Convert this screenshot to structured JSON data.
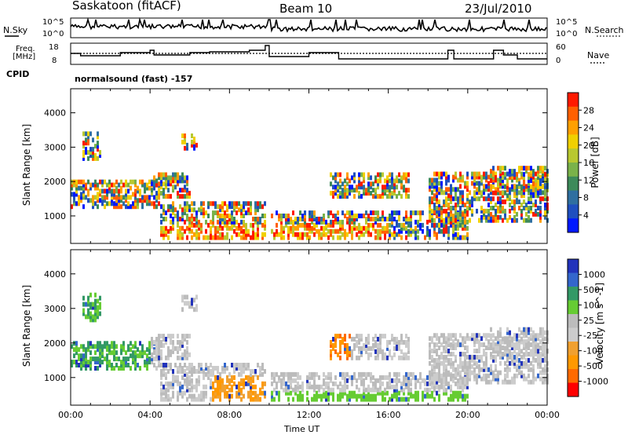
{
  "header": {
    "station": "Saskatoon (fitACF)",
    "beam": "Beam 10",
    "date": "23/Jul/2010"
  },
  "strip1": {
    "left_label": "N.Sky",
    "right_label": "N.Search",
    "left_ticks": [
      "10^5",
      "10^0"
    ],
    "right_ticks": [
      "10^5",
      "10^0"
    ]
  },
  "strip2": {
    "left_label_line1": "Freq.",
    "left_label_line2": "[MHz]",
    "right_label": "Nave",
    "left_ticks": [
      "18",
      "8"
    ],
    "right_ticks": [
      "60",
      "0"
    ]
  },
  "cpid": {
    "label": "CPID",
    "value": "normalsound (fast) -157"
  },
  "colors": {
    "power": [
      "#0019ff",
      "#1f4fbf",
      "#2f6fa0",
      "#3d8a5a",
      "#7ab24a",
      "#b8c830",
      "#f0d000",
      "#ffa000",
      "#ff6000",
      "#ff1a00"
    ],
    "velocity": [
      "#ff0000",
      "#ff6a00",
      "#ff9900",
      "#f0a030",
      "#cccccc",
      "#bcbcbc",
      "#66cc33",
      "#339966",
      "#3366cc",
      "#2233bb"
    ]
  },
  "chart_data": [
    {
      "type": "heatmap",
      "title": "Power",
      "ylabel": "Slant Range [km]",
      "xlabel": "",
      "yticks": [
        "1000",
        "2000",
        "3000",
        "4000"
      ],
      "ylim": [
        200,
        4700
      ],
      "xlim": [
        0,
        24
      ],
      "colorbar": {
        "label": "Power [dB]",
        "ticks": [
          "4",
          "8",
          "12",
          "16",
          "20",
          "24",
          "28"
        ],
        "range": [
          0,
          32
        ]
      }
    },
    {
      "type": "heatmap",
      "title": "Velocity",
      "ylabel": "Slant Range [km]",
      "xlabel": "Time UT",
      "xticks": [
        "00:00",
        "04:00",
        "08:00",
        "12:00",
        "16:00",
        "20:00",
        "00:00"
      ],
      "yticks": [
        "1000",
        "2000",
        "3000",
        "4000"
      ],
      "ylim": [
        200,
        4700
      ],
      "xlim": [
        0,
        24
      ],
      "colorbar": {
        "label": "Velocity [m s^-1]",
        "ticks": [
          "1000",
          "500",
          "100",
          "25",
          "-25",
          "-100",
          "-500",
          "-1000"
        ]
      }
    }
  ]
}
